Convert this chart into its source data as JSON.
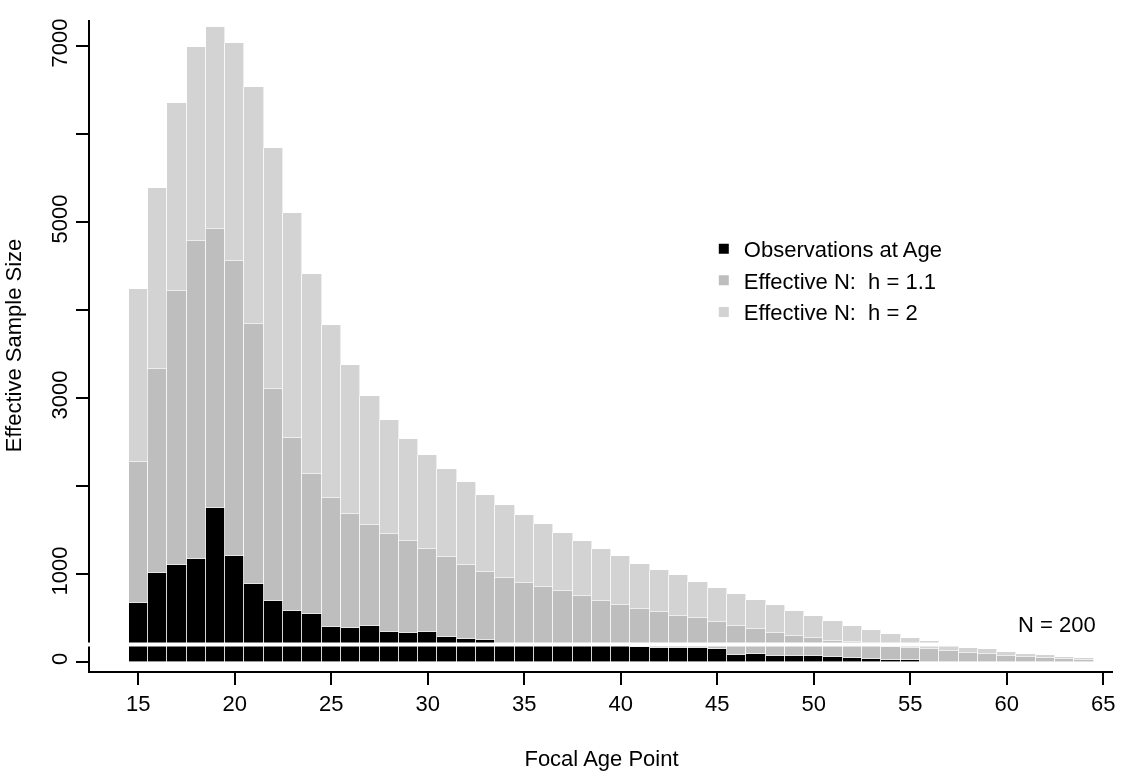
{
  "chart_data": {
    "type": "bar",
    "xlabel": "Focal Age Point",
    "ylabel": "Effective Sample Size",
    "x": [
      15,
      16,
      17,
      18,
      19,
      20,
      21,
      22,
      23,
      24,
      25,
      26,
      27,
      28,
      29,
      30,
      31,
      32,
      33,
      34,
      35,
      36,
      37,
      38,
      39,
      40,
      41,
      42,
      43,
      44,
      45,
      46,
      47,
      48,
      49,
      50,
      51,
      52,
      53,
      54,
      55,
      56,
      57,
      58,
      59,
      60,
      61,
      62,
      63,
      64
    ],
    "series": [
      {
        "name": "Observations at Age",
        "color": "#000000",
        "values": [
          673,
          1019,
          1101,
          1168,
          1755,
          1212,
          889,
          697,
          577,
          553,
          404,
          390,
          415,
          348,
          336,
          348,
          283,
          263,
          248,
          200,
          210,
          205,
          205,
          200,
          185,
          180,
          175,
          160,
          160,
          160,
          150,
          80,
          95,
          75,
          70,
          65,
          55,
          45,
          35,
          25,
          20,
          null,
          null,
          null,
          null,
          null,
          null,
          null,
          null,
          null
        ]
      },
      {
        "name": "Effective N:  h = 1.1",
        "color": "#bebebe",
        "values": [
          1601,
          2318,
          3115,
          3620,
          3173,
          3346,
          2957,
          2414,
          1971,
          1591,
          1461,
          1290,
          1141,
          1110,
          1037,
          936,
          916,
          843,
          777,
          759,
          691,
          653,
          603,
          554,
          507,
          466,
          425,
          410,
          367,
          340,
          310,
          334,
          281,
          262,
          232,
          206,
          189,
          180,
          155,
          149,
          140,
          145,
          128,
          110,
          92,
          75,
          60,
          46,
          33,
          20
        ]
      },
      {
        "name": "Effective N:  h = 2",
        "color": "#d3d3d3",
        "values": [
          1966,
          2052,
          2140,
          2207,
          2293,
          2485,
          2692,
          2735,
          2553,
          2269,
          1967,
          1695,
          1471,
          1299,
          1163,
          1075,
          993,
          939,
          881,
          827,
          769,
          708,
          661,
          619,
          595,
          557,
          521,
          478,
          459,
          416,
          383,
          359,
          331,
          309,
          283,
          251,
          228,
          189,
          178,
          144,
          111,
          93,
          72,
          57,
          55,
          45,
          37,
          32,
          27,
          25
        ]
      }
    ],
    "xlim": [
      12.5,
      65.5
    ],
    "xticks": [
      15,
      20,
      25,
      30,
      35,
      40,
      45,
      50,
      55,
      60,
      65
    ],
    "ylim": [
      -100,
      7300
    ],
    "yticks": [
      0,
      1000,
      {
        "value": 2000,
        "label": null
      },
      3000,
      {
        "value": 4000,
        "label": null
      },
      5000,
      {
        "value": 6000,
        "label": null
      },
      7000
    ],
    "ref_lines": [
      {
        "axis": "y",
        "value": 200,
        "label": "N = 200",
        "color": "#ffffff"
      }
    ],
    "stacked": true,
    "legend": "right"
  }
}
